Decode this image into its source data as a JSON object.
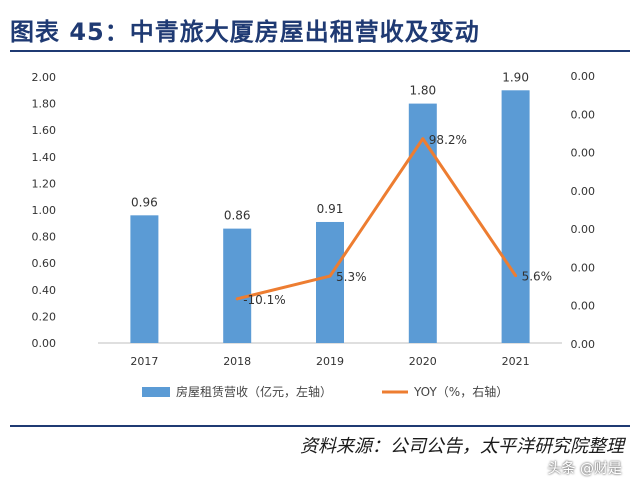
{
  "header": {
    "title": "图表 45：中青旅大厦房屋出租营收及变动"
  },
  "footer": {
    "source": "资料来源：公司公告，太平洋研究院整理",
    "watermark": "头条 @财是"
  },
  "colors": {
    "bar": "#5b9bd5",
    "line": "#ed7d31",
    "title": "#1f3a73"
  },
  "chart_data": {
    "type": "bar+line",
    "categories": [
      "2017",
      "2018",
      "2019",
      "2020",
      "2021"
    ],
    "series": [
      {
        "name": "房屋租赁营收（亿元，左轴）",
        "type": "bar",
        "axis": "left",
        "values": [
          0.96,
          0.86,
          0.91,
          1.8,
          1.9
        ],
        "labels": [
          "0.96",
          "0.86",
          "0.91",
          "1.80",
          "1.90"
        ]
      },
      {
        "name": "YOY（%，右轴）",
        "type": "line",
        "axis": "right",
        "values": [
          null,
          -10.1,
          5.3,
          98.2,
          5.6
        ],
        "labels": [
          "",
          "-10.1%",
          "5.3%",
          "98.2%",
          "5.6%"
        ]
      }
    ],
    "left_axis": {
      "ylim": [
        0,
        2.0
      ],
      "ticks": [
        "0.00",
        "0.20",
        "0.40",
        "0.60",
        "0.80",
        "1.00",
        "1.20",
        "1.40",
        "1.60",
        "1.80",
        "2.00"
      ]
    },
    "right_axis": {
      "ticks": [
        "0.00",
        "0.00",
        "0.00",
        "0.00",
        "0.00",
        "0.00",
        "0.00",
        "0.00"
      ]
    },
    "grid": false,
    "legend": "bottom"
  }
}
